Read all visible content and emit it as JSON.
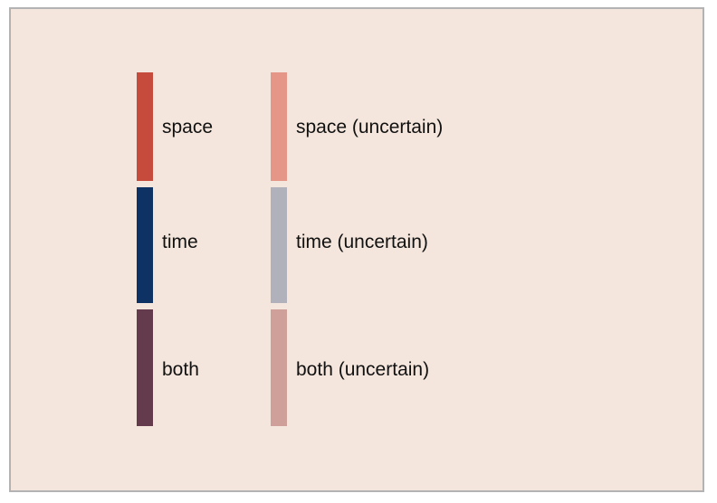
{
  "legend": {
    "items": [
      {
        "label": "space",
        "color": "#c64b3c"
      },
      {
        "label": "time",
        "color": "#0d3263"
      },
      {
        "label": "both",
        "color": "#633b4c"
      },
      {
        "label": "space (uncertain)",
        "color": "#e59686"
      },
      {
        "label": "time (uncertain)",
        "color": "#b1b1bb"
      },
      {
        "label": "both (uncertain)",
        "color": "#cfa09a"
      }
    ]
  }
}
